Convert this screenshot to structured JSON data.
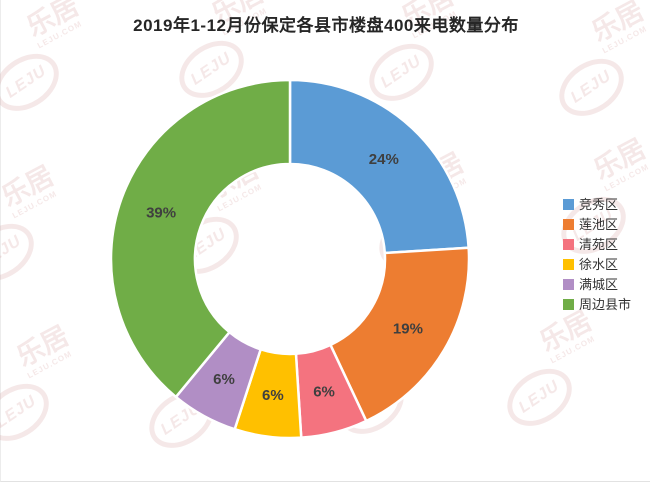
{
  "title": "2019年1-12月份保定各县市楼盘400来电数量分布",
  "watermark": {
    "logo_cn": "乐居",
    "logo_en": "LEJU",
    "logo_site": "LEJU.COM"
  },
  "chart_data": {
    "type": "pie",
    "subtype": "donut",
    "title": "2019年1-12月份保定各县市楼盘400来电数量分布",
    "categories": [
      "竞秀区",
      "莲池区",
      "清苑区",
      "徐水区",
      "满城区",
      "周边县市"
    ],
    "values": [
      24,
      19,
      6,
      6,
      6,
      39
    ],
    "unit": "%",
    "slice_labels": [
      "24%",
      "19%",
      "6%",
      "6%",
      "6%",
      "39%"
    ],
    "colors": [
      "#5B9BD5",
      "#ED7D31",
      "#F4737F",
      "#FFC000",
      "#B18EC5",
      "#70AD47"
    ],
    "legend_position": "right",
    "start_angle_deg": 0,
    "direction": "clockwise",
    "donut_hole_ratio": 0.53
  }
}
